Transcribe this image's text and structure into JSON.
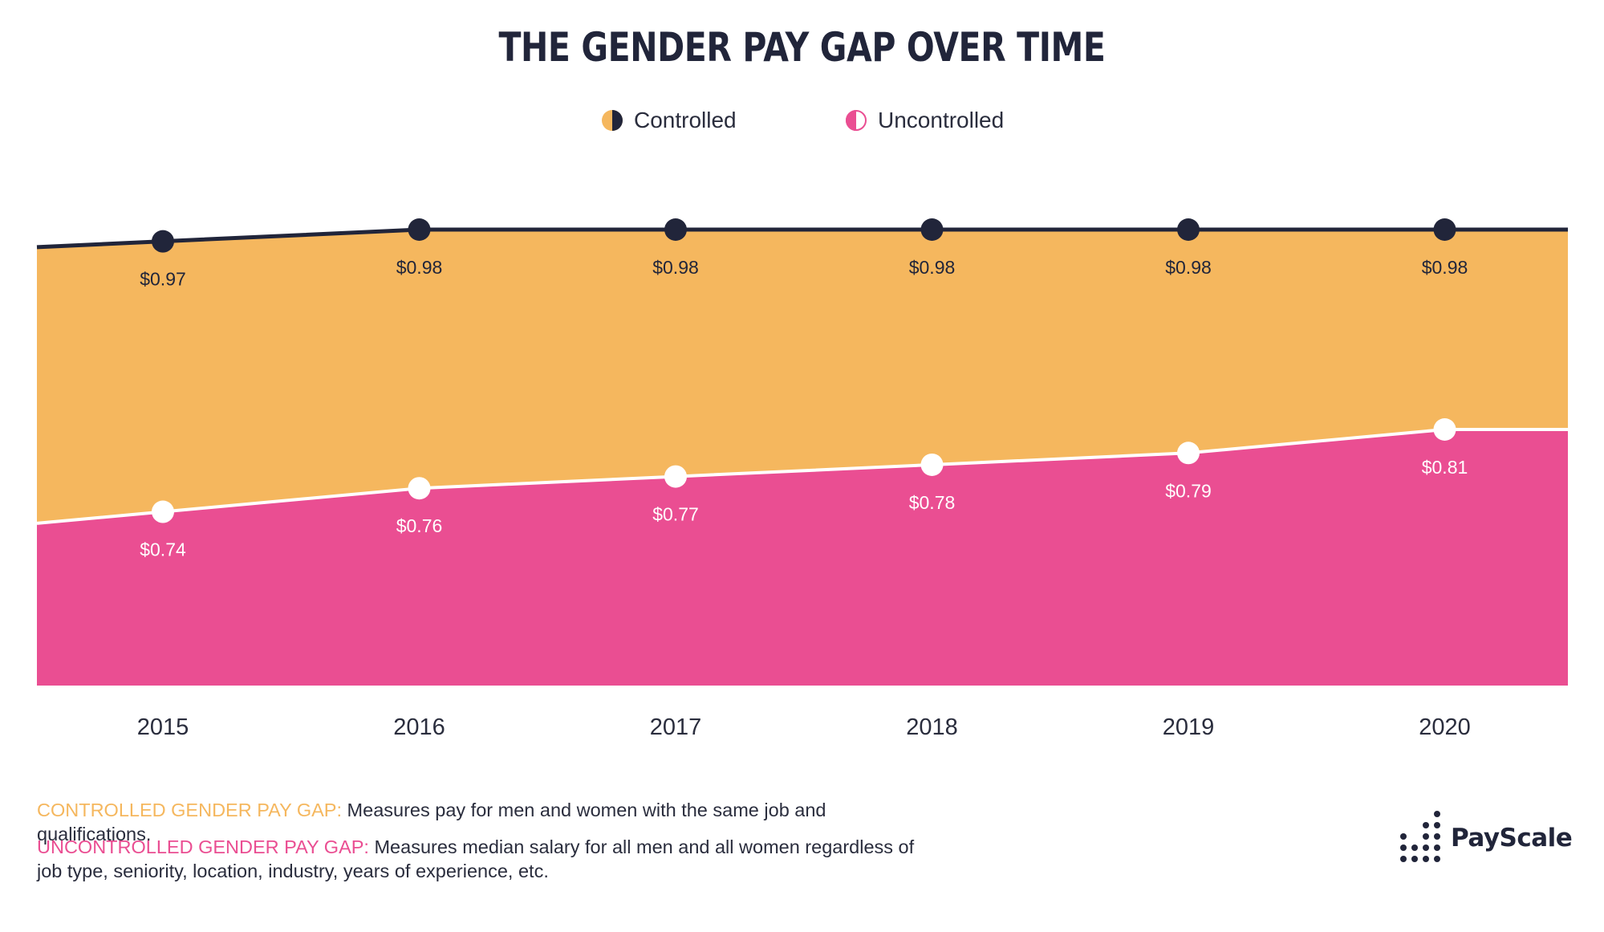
{
  "title": "THE GENDER PAY GAP OVER TIME",
  "legend": {
    "controlled": "Controlled",
    "uncontrolled": "Uncontrolled"
  },
  "colors": {
    "controlled": "#f5b75e",
    "uncontrolled": "#ea4e92",
    "dark": "#21253a",
    "white": "#ffffff"
  },
  "chart_data": {
    "type": "area",
    "categories": [
      "2015",
      "2016",
      "2017",
      "2018",
      "2019",
      "2020"
    ],
    "series": [
      {
        "name": "Controlled",
        "values": [
          0.97,
          0.98,
          0.98,
          0.98,
          0.98,
          0.98
        ],
        "labels": [
          "$0.97",
          "$0.98",
          "$0.98",
          "$0.98",
          "$0.98",
          "$0.98"
        ]
      },
      {
        "name": "Uncontrolled",
        "values": [
          0.74,
          0.76,
          0.77,
          0.78,
          0.79,
          0.81
        ],
        "labels": [
          "$0.74",
          "$0.76",
          "$0.77",
          "$0.78",
          "$0.79",
          "$0.81"
        ]
      }
    ],
    "title": "THE GENDER PAY GAP OVER TIME",
    "xlabel": "",
    "ylabel": "",
    "grid": false,
    "legend_position": "top-center"
  },
  "notes": {
    "controlled_term": "CONTROLLED GENDER PAY GAP:",
    "controlled_text": " Measures pay for men and women with the same job and qualifications.",
    "uncontrolled_term": "UNCONTROLLED GENDER PAY GAP:",
    "uncontrolled_text": " Measures median salary for all men and all women regardless of job type, seniority, location, industry, years of experience, etc."
  },
  "logo": {
    "text": "PayScale",
    "icon": "payscale-dots-icon"
  }
}
